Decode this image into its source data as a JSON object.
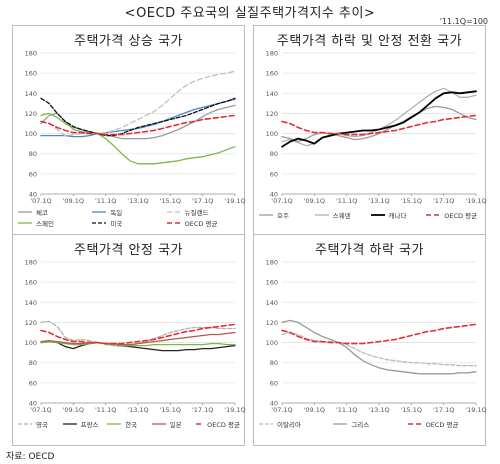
{
  "page_title": "<OECD 주요국의 실질주택가격지수 추이>",
  "base_note": "'11.1Q=100",
  "source": "자료: OECD",
  "chart_data": [
    {
      "type": "line",
      "title": "주택가격 상승 국가",
      "x_ticks": [
        "'07.1Q",
        "'09.1Q",
        "'11.1Q",
        "'13.1Q",
        "'15.1Q",
        "'17.1Q",
        "'19.1Q"
      ],
      "ylim": [
        40,
        180
      ],
      "y_ticks": [
        40,
        60,
        80,
        100,
        120,
        140,
        160,
        180
      ],
      "legend_columns": 3,
      "series": [
        {
          "name": "체코",
          "color": "#9a9a9a",
          "dash": "solid",
          "width": 1.3,
          "x": [
            0,
            2,
            4,
            6,
            8,
            10,
            12,
            14,
            16,
            18,
            20,
            22,
            24,
            26,
            28,
            30,
            32,
            34,
            36,
            38,
            40,
            42,
            44,
            46,
            48
          ],
          "y": [
            110,
            118,
            120,
            112,
            104,
            102,
            101,
            100,
            99,
            97,
            95,
            95,
            95,
            95,
            96,
            98,
            101,
            104,
            108,
            112,
            117,
            121,
            124,
            126,
            128
          ]
        },
        {
          "name": "독일",
          "color": "#4a86c8",
          "dash": "solid",
          "width": 1.3,
          "x": [
            0,
            2,
            4,
            6,
            8,
            10,
            12,
            14,
            16,
            18,
            20,
            22,
            24,
            26,
            28,
            30,
            32,
            34,
            36,
            38,
            40,
            42,
            44,
            46,
            48
          ],
          "y": [
            98,
            98,
            98,
            98,
            97,
            97,
            98,
            100,
            101,
            102,
            103,
            104,
            105,
            107,
            109,
            112,
            115,
            118,
            121,
            124,
            126,
            128,
            130,
            132,
            134
          ]
        },
        {
          "name": "뉴질랜드",
          "color": "#c0c0c0",
          "dash": "5,3",
          "width": 1.3,
          "x": [
            0,
            2,
            4,
            6,
            8,
            10,
            12,
            14,
            16,
            18,
            20,
            22,
            24,
            26,
            28,
            30,
            32,
            34,
            36,
            38,
            40,
            42,
            44,
            46,
            48
          ],
          "y": [
            112,
            110,
            104,
            98,
            99,
            100,
            100,
            100,
            101,
            103,
            106,
            110,
            114,
            118,
            122,
            128,
            135,
            142,
            148,
            152,
            155,
            157,
            159,
            160,
            162
          ]
        },
        {
          "name": "스페인",
          "color": "#7cb944",
          "dash": "solid",
          "width": 1.3,
          "x": [
            0,
            2,
            4,
            6,
            8,
            10,
            12,
            14,
            16,
            18,
            20,
            22,
            24,
            26,
            28,
            30,
            32,
            34,
            36,
            38,
            40,
            42,
            44,
            46,
            48
          ],
          "y": [
            118,
            120,
            116,
            110,
            106,
            104,
            102,
            100,
            95,
            88,
            80,
            73,
            70,
            70,
            70,
            71,
            72,
            73,
            75,
            76,
            77,
            79,
            81,
            84,
            87
          ]
        },
        {
          "name": "미국",
          "color": "#111111",
          "dash": "4,2",
          "width": 1.3,
          "x": [
            0,
            2,
            4,
            6,
            8,
            10,
            12,
            14,
            16,
            18,
            20,
            22,
            24,
            26,
            28,
            30,
            32,
            34,
            36,
            38,
            40,
            42,
            44,
            46,
            48
          ],
          "y": [
            135,
            130,
            120,
            112,
            107,
            104,
            102,
            100,
            98,
            98,
            100,
            103,
            106,
            108,
            110,
            112,
            114,
            116,
            118,
            121,
            124,
            127,
            130,
            132,
            135
          ]
        },
        {
          "name": "OECD 평균",
          "color": "#e03030",
          "dash": "5,3",
          "width": 1.6,
          "x": [
            0,
            2,
            4,
            6,
            8,
            10,
            12,
            14,
            16,
            18,
            20,
            22,
            24,
            26,
            28,
            30,
            32,
            34,
            36,
            38,
            40,
            42,
            44,
            46,
            48
          ],
          "y": [
            112,
            110,
            106,
            103,
            101,
            101,
            100,
            100,
            99,
            99,
            99,
            100,
            101,
            102,
            103,
            105,
            107,
            109,
            111,
            112,
            114,
            115,
            116,
            117,
            118
          ]
        }
      ]
    },
    {
      "type": "line",
      "title": "주택가격 하락 및 안정 전환 국가",
      "x_ticks": [
        "'07.1Q",
        "'09.1Q",
        "'11.1Q",
        "'13.1Q",
        "'15.1Q",
        "'17.1Q",
        "'19.1Q"
      ],
      "ylim": [
        40,
        180
      ],
      "y_ticks": [
        40,
        60,
        80,
        100,
        120,
        140,
        160,
        180
      ],
      "legend_columns": 4,
      "series": [
        {
          "name": "호주",
          "color": "#9a9a9a",
          "dash": "solid",
          "width": 1.3,
          "x": [
            0,
            2,
            4,
            6,
            8,
            10,
            12,
            14,
            16,
            18,
            20,
            22,
            24,
            26,
            28,
            30,
            32,
            34,
            36,
            38,
            40,
            42,
            44,
            46,
            48
          ],
          "y": [
            97,
            95,
            92,
            95,
            99,
            101,
            100,
            98,
            96,
            94,
            95,
            97,
            100,
            104,
            108,
            112,
            117,
            121,
            125,
            127,
            126,
            124,
            120,
            116,
            114
          ]
        },
        {
          "name": "스웨덴",
          "color": "#b0b0b0",
          "dash": "solid",
          "width": 1.3,
          "x": [
            0,
            2,
            4,
            6,
            8,
            10,
            12,
            14,
            16,
            18,
            20,
            22,
            24,
            26,
            28,
            30,
            32,
            34,
            36,
            38,
            40,
            42,
            44,
            46,
            48
          ],
          "y": [
            92,
            94,
            91,
            88,
            90,
            96,
            99,
            100,
            98,
            97,
            98,
            101,
            104,
            108,
            113,
            119,
            125,
            131,
            137,
            142,
            145,
            141,
            136,
            136,
            138
          ]
        },
        {
          "name": "캐나다",
          "color": "#000000",
          "dash": "solid",
          "width": 1.8,
          "x": [
            0,
            2,
            4,
            6,
            8,
            10,
            12,
            14,
            16,
            18,
            20,
            22,
            24,
            26,
            28,
            30,
            32,
            34,
            36,
            38,
            40,
            42,
            44,
            46,
            48
          ],
          "y": [
            87,
            92,
            95,
            93,
            90,
            96,
            98,
            100,
            101,
            102,
            103,
            103,
            104,
            106,
            108,
            111,
            116,
            121,
            128,
            135,
            140,
            141,
            140,
            141,
            142
          ]
        },
        {
          "name": "OECD 평균",
          "color": "#e03030",
          "dash": "5,3",
          "width": 1.6,
          "x": [
            0,
            2,
            4,
            6,
            8,
            10,
            12,
            14,
            16,
            18,
            20,
            22,
            24,
            26,
            28,
            30,
            32,
            34,
            36,
            38,
            40,
            42,
            44,
            46,
            48
          ],
          "y": [
            112,
            110,
            106,
            103,
            101,
            101,
            100,
            100,
            99,
            99,
            99,
            100,
            101,
            102,
            103,
            105,
            107,
            109,
            111,
            112,
            114,
            115,
            116,
            117,
            118
          ]
        }
      ]
    },
    {
      "type": "line",
      "title": "주택가격 안정 국가",
      "x_ticks": [
        "'07.1Q",
        "'09.1Q",
        "'11.1Q",
        "'13.1Q",
        "'15.1Q",
        "'17.1Q",
        "'19.1Q"
      ],
      "ylim": [
        40,
        180
      ],
      "y_ticks": [
        40,
        60,
        80,
        100,
        120,
        140,
        160,
        180
      ],
      "legend_columns": 5,
      "series": [
        {
          "name": "영국",
          "color": "#b0b0b0",
          "dash": "4,2",
          "width": 1.3,
          "x": [
            0,
            2,
            4,
            6,
            8,
            10,
            12,
            14,
            16,
            18,
            20,
            22,
            24,
            26,
            28,
            30,
            32,
            34,
            36,
            38,
            40,
            42,
            44,
            46,
            48
          ],
          "y": [
            120,
            121,
            116,
            105,
            102,
            103,
            102,
            100,
            98,
            97,
            96,
            97,
            99,
            101,
            104,
            107,
            110,
            112,
            114,
            115,
            115,
            115,
            114,
            114,
            114
          ]
        },
        {
          "name": "프랑스",
          "color": "#222222",
          "dash": "solid",
          "width": 1.3,
          "x": [
            0,
            2,
            4,
            6,
            8,
            10,
            12,
            14,
            16,
            18,
            20,
            22,
            24,
            26,
            28,
            30,
            32,
            34,
            36,
            38,
            40,
            42,
            44,
            46,
            48
          ],
          "y": [
            100,
            101,
            100,
            96,
            94,
            97,
            99,
            100,
            99,
            98,
            97,
            96,
            95,
            94,
            93,
            92,
            92,
            92,
            93,
            93,
            94,
            94,
            95,
            96,
            97
          ]
        },
        {
          "name": "한국",
          "color": "#7cb944",
          "dash": "solid",
          "width": 1.3,
          "x": [
            0,
            2,
            4,
            6,
            8,
            10,
            12,
            14,
            16,
            18,
            20,
            22,
            24,
            26,
            28,
            30,
            32,
            34,
            36,
            38,
            40,
            42,
            44,
            46,
            48
          ],
          "y": [
            100,
            101,
            100,
            99,
            98,
            98,
            99,
            100,
            99,
            98,
            97,
            97,
            97,
            97,
            98,
            98,
            98,
            98,
            98,
            98,
            98,
            99,
            99,
            98,
            98
          ]
        },
        {
          "name": "일본",
          "color": "#b05a50",
          "dash": "solid",
          "width": 1.3,
          "x": [
            0,
            2,
            4,
            6,
            8,
            10,
            12,
            14,
            16,
            18,
            20,
            22,
            24,
            26,
            28,
            30,
            32,
            34,
            36,
            38,
            40,
            42,
            44,
            46,
            48
          ],
          "y": [
            101,
            102,
            101,
            100,
            99,
            99,
            100,
            100,
            99,
            99,
            98,
            98,
            99,
            100,
            101,
            102,
            103,
            104,
            105,
            106,
            107,
            108,
            108,
            109,
            110
          ]
        },
        {
          "name": "OECD 평균",
          "color": "#e03030",
          "dash": "5,3",
          "width": 1.6,
          "x": [
            0,
            2,
            4,
            6,
            8,
            10,
            12,
            14,
            16,
            18,
            20,
            22,
            24,
            26,
            28,
            30,
            32,
            34,
            36,
            38,
            40,
            42,
            44,
            46,
            48
          ],
          "y": [
            112,
            110,
            106,
            103,
            101,
            101,
            100,
            100,
            99,
            99,
            99,
            100,
            101,
            102,
            103,
            105,
            107,
            109,
            111,
            112,
            114,
            115,
            116,
            117,
            118
          ]
        }
      ]
    },
    {
      "type": "line",
      "title": "주택가격 하락 국가",
      "x_ticks": [
        "'07.1Q",
        "'09.1Q",
        "'11.1Q",
        "'13.1Q",
        "'15.1Q",
        "'17.1Q",
        "'19.1Q"
      ],
      "ylim": [
        40,
        180
      ],
      "y_ticks": [
        40,
        60,
        80,
        100,
        120,
        140,
        160,
        180
      ],
      "legend_columns": 3,
      "series": [
        {
          "name": "이탈리아",
          "color": "#bbbbbb",
          "dash": "4,2",
          "width": 1.3,
          "x": [
            0,
            2,
            4,
            6,
            8,
            10,
            12,
            14,
            16,
            18,
            20,
            22,
            24,
            26,
            28,
            30,
            32,
            34,
            36,
            38,
            40,
            42,
            44,
            46,
            48
          ],
          "y": [
            108,
            110,
            108,
            104,
            102,
            101,
            101,
            100,
            98,
            94,
            90,
            87,
            85,
            83,
            82,
            81,
            80,
            80,
            79,
            79,
            78,
            78,
            77,
            77,
            77
          ]
        },
        {
          "name": "그리스",
          "color": "#999999",
          "dash": "solid",
          "width": 1.3,
          "x": [
            0,
            2,
            4,
            6,
            8,
            10,
            12,
            14,
            16,
            18,
            20,
            22,
            24,
            26,
            28,
            30,
            32,
            34,
            36,
            38,
            40,
            42,
            44,
            46,
            48
          ],
          "y": [
            120,
            122,
            120,
            115,
            110,
            106,
            103,
            100,
            95,
            88,
            82,
            78,
            75,
            73,
            72,
            71,
            70,
            69,
            69,
            69,
            69,
            69,
            70,
            70,
            71
          ]
        },
        {
          "name": "OECD 평균",
          "color": "#e03030",
          "dash": "5,3",
          "width": 1.6,
          "x": [
            0,
            2,
            4,
            6,
            8,
            10,
            12,
            14,
            16,
            18,
            20,
            22,
            24,
            26,
            28,
            30,
            32,
            34,
            36,
            38,
            40,
            42,
            44,
            46,
            48
          ],
          "y": [
            112,
            110,
            106,
            103,
            101,
            101,
            100,
            100,
            99,
            99,
            99,
            100,
            101,
            102,
            103,
            105,
            107,
            109,
            111,
            112,
            114,
            115,
            116,
            117,
            118
          ]
        }
      ]
    }
  ]
}
